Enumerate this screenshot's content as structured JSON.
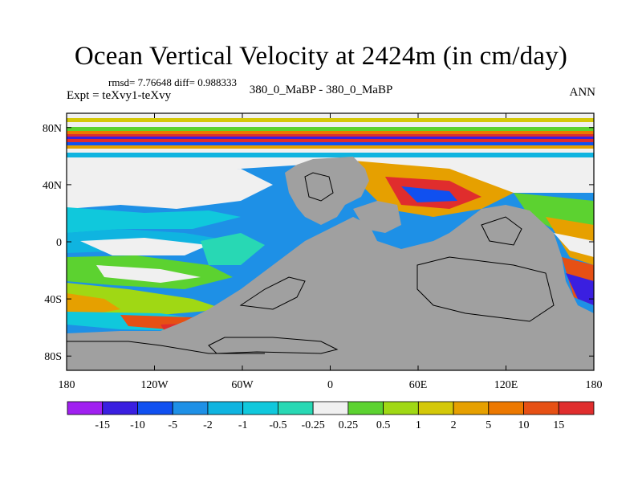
{
  "chart_data": {
    "type": "heatmap",
    "title": "Ocean Vertical Velocity at 2424m (in cm/day)",
    "stats_line": "rmsd= 7.76648 diff= 0.988333",
    "left_label": "Expt = teXvy1-teXvy",
    "center_label": "380_0_MaBP - 380_0_MaBP",
    "right_label": "ANN",
    "x_ticks": [
      "180",
      "120W",
      "60W",
      "0",
      "60E",
      "120E",
      "180"
    ],
    "y_ticks": [
      "80N",
      "40N",
      "0",
      "40S",
      "80S"
    ],
    "xlim": [
      -180,
      180
    ],
    "ylim": [
      -90,
      90
    ],
    "colorbar": {
      "labels": [
        "-15",
        "-10",
        "-5",
        "-2",
        "-1",
        "-0.5",
        "-0.25",
        "0.25",
        "0.5",
        "1",
        "2",
        "5",
        "10",
        "15"
      ],
      "colors": [
        "#a020f0",
        "#3a1fe0",
        "#1050f0",
        "#1e90e6",
        "#0fb4e0",
        "#10c8dc",
        "#28d8b4",
        "#f0f0f0",
        "#5cd230",
        "#a0d814",
        "#d4c808",
        "#e6a000",
        "#ec7800",
        "#e65014",
        "#e02d2d"
      ]
    },
    "land_color": "#a0a0a0"
  }
}
